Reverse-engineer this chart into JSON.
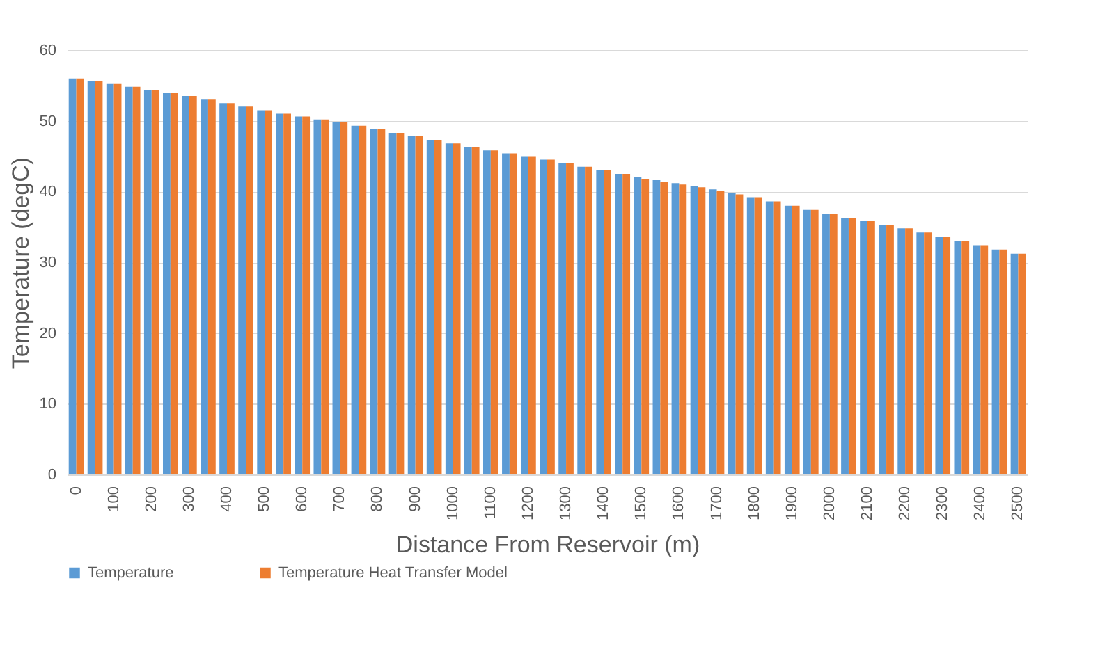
{
  "chart_data": {
    "type": "bar",
    "xlabel": "Distance From Reservoir (m)",
    "ylabel": "Temperature (degC)",
    "categories": [
      "0",
      null,
      "100",
      null,
      "200",
      null,
      "300",
      null,
      "400",
      null,
      "500",
      null,
      "600",
      null,
      "700",
      null,
      "800",
      null,
      "900",
      null,
      "1000",
      null,
      "1100",
      null,
      "1200",
      null,
      "1300",
      null,
      "1400",
      null,
      "1500",
      null,
      "1600",
      null,
      "1700",
      null,
      "1800",
      null,
      "1900",
      null,
      "2000",
      null,
      "2100",
      null,
      "2200",
      null,
      "2300",
      null,
      "2400",
      null,
      "2500"
    ],
    "series": [
      {
        "name": "Temperature",
        "color": "#5b9bd5",
        "values": [
          56.0,
          55.6,
          55.2,
          54.8,
          54.4,
          54.0,
          53.5,
          53.0,
          52.5,
          52.0,
          51.5,
          51.0,
          50.6,
          50.2,
          49.8,
          49.3,
          48.8,
          48.3,
          47.8,
          47.3,
          46.8,
          46.3,
          45.8,
          45.4,
          45.0,
          44.5,
          44.0,
          43.5,
          43.0,
          42.5,
          42.0,
          41.6,
          41.2,
          40.8,
          40.3,
          39.8,
          39.2,
          38.6,
          38.0,
          37.4,
          36.8,
          36.3,
          35.8,
          35.3,
          34.8,
          34.2,
          33.6,
          33.0,
          32.4,
          31.8,
          31.2
        ]
      },
      {
        "name": "Temperature Heat Transfer Model",
        "color": "#ed7d31",
        "values": [
          56.0,
          55.6,
          55.2,
          54.8,
          54.4,
          54.0,
          53.5,
          53.0,
          52.5,
          52.0,
          51.5,
          51.0,
          50.6,
          50.2,
          49.8,
          49.3,
          48.8,
          48.3,
          47.8,
          47.3,
          46.8,
          46.3,
          45.8,
          45.4,
          45.0,
          44.5,
          44.0,
          43.5,
          43.0,
          42.5,
          41.8,
          41.4,
          41.0,
          40.6,
          40.1,
          39.6,
          39.2,
          38.6,
          38.0,
          37.4,
          36.8,
          36.3,
          35.8,
          35.3,
          34.8,
          34.2,
          33.6,
          33.0,
          32.4,
          31.8,
          31.2
        ]
      }
    ],
    "ylim": [
      0,
      60
    ],
    "yticks": [
      0,
      10,
      20,
      30,
      40,
      50,
      60
    ],
    "grid": "y",
    "legend": "bottom"
  }
}
